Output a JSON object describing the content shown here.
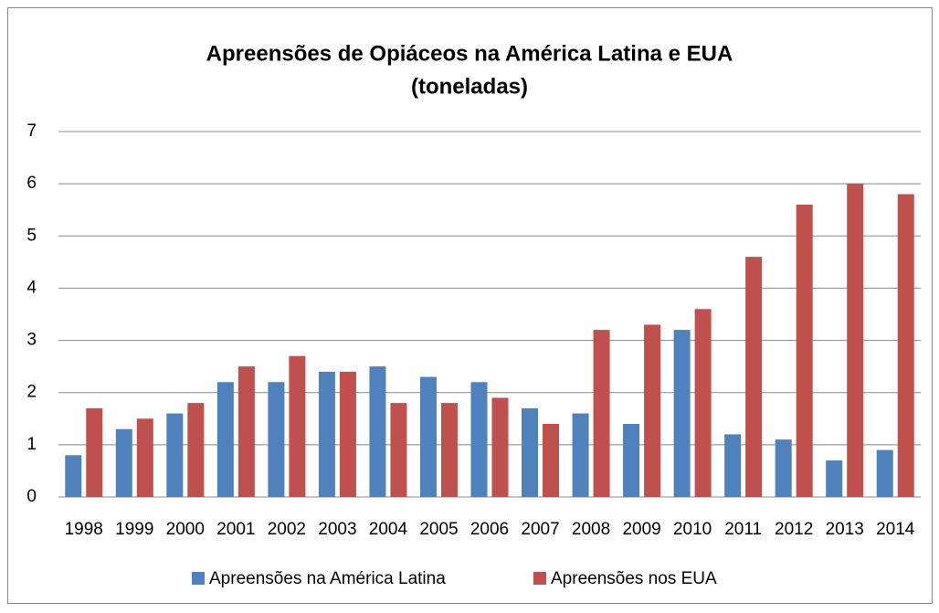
{
  "chart_data": {
    "type": "bar",
    "title": [
      "Apreensões de Opiáceos na América Latina e EUA",
      "(toneladas)"
    ],
    "categories": [
      "1998",
      "1999",
      "2000",
      "2001",
      "2002",
      "2003",
      "2004",
      "2005",
      "2006",
      "2007",
      "2008",
      "2009",
      "2010",
      "2011",
      "2012",
      "2013",
      "2014"
    ],
    "series": [
      {
        "name": "Apreensões na América Latina",
        "color": "#4f81bd",
        "values": [
          0.8,
          1.3,
          1.6,
          2.2,
          2.2,
          2.4,
          2.5,
          2.3,
          2.2,
          1.7,
          1.6,
          1.4,
          3.2,
          1.2,
          1.1,
          0.7,
          0.9
        ]
      },
      {
        "name": "Apreensões nos EUA",
        "color": "#c0504d",
        "values": [
          1.7,
          1.5,
          1.8,
          2.5,
          2.7,
          2.4,
          1.8,
          1.8,
          1.9,
          1.4,
          3.2,
          3.3,
          3.6,
          4.6,
          5.6,
          6.0,
          5.8
        ]
      }
    ],
    "ylim": [
      0,
      7
    ],
    "yticks": [
      0,
      1,
      2,
      3,
      4,
      5,
      6,
      7
    ],
    "grid": true,
    "legend": "bottom"
  }
}
